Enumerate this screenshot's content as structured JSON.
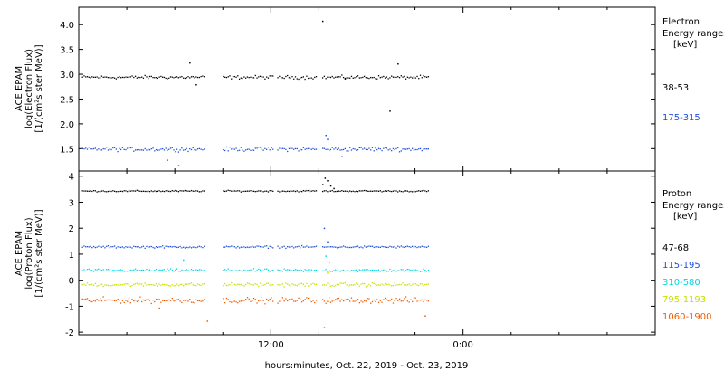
{
  "chart_data": [
    {
      "type": "scatter",
      "panel": "electron",
      "ylabel": [
        "ACE EPAM",
        "log(Electron Flux)",
        "[1/(cm²s ster MeV)]"
      ],
      "ylim": [
        1.05,
        4.35
      ],
      "yticks": [
        1.5,
        2.0,
        2.5,
        3.0,
        3.5,
        4.0
      ],
      "ytick_labels": [
        "1.5",
        "2.0",
        "2.5",
        "3.0",
        "3.5",
        "4.0"
      ],
      "legend_title": [
        "Electron",
        "Energy ranges",
        "[keV]"
      ],
      "series": [
        {
          "name": "38-53",
          "color": "#000000",
          "base": 2.95,
          "noise": 0.05,
          "outliers": [
            [
              6.9,
              3.24
            ],
            [
              7.3,
              2.8
            ],
            [
              15.2,
              4.08
            ],
            [
              16.6,
              2.92
            ],
            [
              19.9,
              3.22
            ],
            [
              19.4,
              2.27
            ]
          ]
        },
        {
          "name": "175-315",
          "color": "#1f4fd8",
          "base": 1.5,
          "noise": 0.06,
          "outliers": [
            [
              6.2,
              1.17
            ],
            [
              5.5,
              1.28
            ],
            [
              15.4,
              1.78
            ],
            [
              15.5,
              1.7
            ],
            [
              16.4,
              1.35
            ]
          ]
        }
      ]
    },
    {
      "type": "scatter",
      "panel": "proton",
      "ylabel": [
        "ACE EPAM",
        "log(Proton Flux)",
        "[1/(cm²s ster MeV)]"
      ],
      "ylim": [
        -2.1,
        4.2
      ],
      "yticks": [
        -2,
        -1,
        0,
        1,
        2,
        3,
        4
      ],
      "ytick_labels": [
        "-2",
        "-1",
        "0",
        "1",
        "2",
        "3",
        "4"
      ],
      "legend_title": [
        "Proton",
        "Energy ranges",
        "[keV]"
      ],
      "series": [
        {
          "name": "47-68",
          "color": "#000000",
          "base": 3.45,
          "noise": 0.04,
          "outliers": [
            [
              15.2,
              3.7
            ],
            [
              15.35,
              3.95
            ],
            [
              15.5,
              3.85
            ],
            [
              15.7,
              3.65
            ],
            [
              15.9,
              3.55
            ]
          ]
        },
        {
          "name": "115-195",
          "color": "#1f4fd8",
          "base": 1.3,
          "noise": 0.06,
          "outliers": [
            [
              15.3,
              2.02
            ],
            [
              15.5,
              1.5
            ]
          ]
        },
        {
          "name": "310-580",
          "color": "#00d4e0",
          "base": 0.4,
          "noise": 0.08,
          "outliers": [
            [
              15.4,
              0.95
            ],
            [
              15.6,
              0.7
            ],
            [
              6.5,
              0.8
            ]
          ]
        },
        {
          "name": "795-1193",
          "color": "#c8e000",
          "base": -0.15,
          "noise": 0.1,
          "outliers": [
            [
              15.5,
              0.3
            ]
          ]
        },
        {
          "name": "1060-1900",
          "color": "#f05a00",
          "base": -0.75,
          "noise": 0.16,
          "outliers": [
            [
              8.0,
              -1.55
            ],
            [
              15.3,
              -1.8
            ],
            [
              21.6,
              -1.35
            ],
            [
              5.0,
              -1.05
            ]
          ]
        }
      ]
    }
  ],
  "time_axis": {
    "start_hour": 0,
    "end_hour": 36,
    "tick_hours": [
      12,
      24
    ],
    "tick_labels": [
      "12:00",
      "0:00"
    ],
    "minor_tick_hours": [
      3,
      6,
      9,
      15,
      18,
      21,
      27,
      30,
      33
    ],
    "data_segments": [
      [
        0.2,
        7.8
      ],
      [
        9.0,
        12.1
      ],
      [
        12.4,
        14.8
      ],
      [
        15.2,
        21.9
      ]
    ],
    "xlabel": "hours:minutes, Oct. 22, 2019 - Oct. 23, 2019"
  }
}
